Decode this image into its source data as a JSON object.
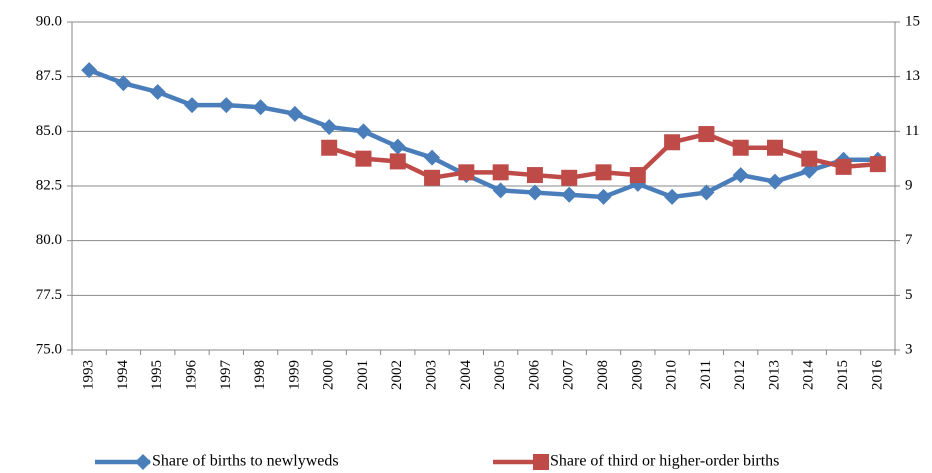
{
  "chart_data": {
    "type": "line",
    "categories": [
      "1993",
      "1994",
      "1995",
      "1996",
      "1997",
      "1998",
      "1999",
      "2000",
      "2001",
      "2002",
      "2003",
      "2004",
      "2005",
      "2006",
      "2007",
      "2008",
      "2009",
      "2010",
      "2011",
      "2012",
      "2013",
      "2014",
      "2015",
      "2016"
    ],
    "series": [
      {
        "name": "Share of births to newlyweds",
        "color": "#4a7ebb",
        "marker": "diamond",
        "axis": "y",
        "values": [
          87.8,
          87.2,
          86.8,
          86.2,
          86.2,
          86.1,
          85.8,
          85.2,
          85.0,
          84.3,
          83.8,
          83.0,
          82.3,
          82.2,
          82.1,
          82.0,
          82.6,
          82.0,
          82.2,
          83.0,
          82.7,
          83.2,
          83.7,
          83.7
        ]
      },
      {
        "name": "Share of third or higher-order births",
        "color": "#be4b48",
        "marker": "square",
        "axis": "y2",
        "values": [
          null,
          null,
          null,
          null,
          null,
          null,
          null,
          10.4,
          10.0,
          9.9,
          9.3,
          9.5,
          9.5,
          9.4,
          9.3,
          9.5,
          9.4,
          10.6,
          10.9,
          10.4,
          10.4,
          10.0,
          9.7,
          9.8
        ]
      }
    ],
    "ylim": [
      75,
      90
    ],
    "yticks": [
      {
        "value": 75,
        "label": "75.0"
      },
      77.5,
      {
        "value": 80,
        "label": "80.0"
      },
      82.5,
      {
        "value": 85,
        "label": "85.0"
      },
      87.5,
      {
        "value": 90,
        "label": "90.0"
      }
    ],
    "y2lim": [
      3,
      15
    ],
    "y2ticks": [
      3,
      5,
      7,
      9,
      11,
      13,
      15
    ],
    "grid": true,
    "legend": "bottom"
  }
}
